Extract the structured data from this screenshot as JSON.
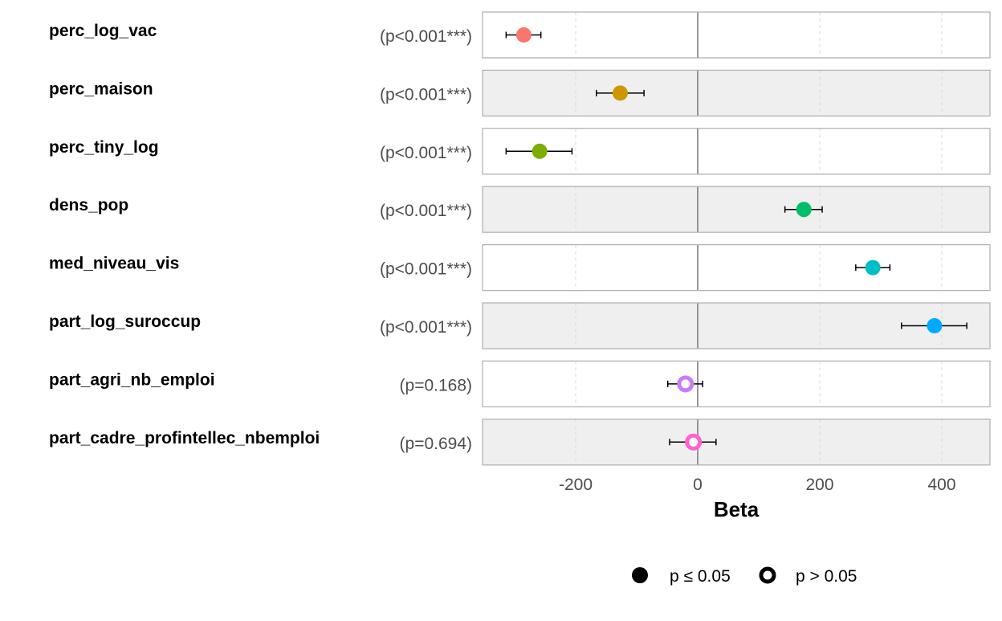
{
  "chart_data": {
    "type": "forest",
    "xlabel": "Beta",
    "xlim": [
      -352,
      480
    ],
    "xticks": [
      -200,
      0,
      200,
      400
    ],
    "xtick_labels": [
      "-200",
      "0",
      "200",
      "400"
    ],
    "reference_line": 0,
    "grid": "vertical dashed at ticks",
    "row_shading": "alternating white / light grey",
    "rows": [
      {
        "label": "perc_log_vac",
        "pvalue": "(p<0.001***)",
        "estimate": -285,
        "ci": [
          -314,
          -257
        ],
        "significant": true,
        "color": "#F8766D"
      },
      {
        "label": "perc_maison",
        "pvalue": "(p<0.001***)",
        "estimate": -127,
        "ci": [
          -166,
          -88
        ],
        "significant": true,
        "color": "#CD9600"
      },
      {
        "label": "perc_tiny_log",
        "pvalue": "(p<0.001***)",
        "estimate": -259,
        "ci": [
          -314,
          -206
        ],
        "significant": true,
        "color": "#7CAE00"
      },
      {
        "label": "dens_pop",
        "pvalue": "(p<0.001***)",
        "estimate": 174,
        "ci": [
          143,
          204
        ],
        "significant": true,
        "color": "#00BE67"
      },
      {
        "label": "med_niveau_vis",
        "pvalue": "(p<0.001***)",
        "estimate": 287,
        "ci": [
          259,
          315
        ],
        "significant": true,
        "color": "#00BFC4"
      },
      {
        "label": "part_log_suroccup",
        "pvalue": "(p<0.001***)",
        "estimate": 388,
        "ci": [
          334,
          441
        ],
        "significant": true,
        "color": "#00A9FF"
      },
      {
        "label": "part_agri_nb_emploi",
        "pvalue": "(p=0.168)",
        "estimate": -20,
        "ci": [
          -49,
          8
        ],
        "significant": false,
        "color": "#C77CFF"
      },
      {
        "label": "part_cadre_profintellec_nbemploi",
        "pvalue": "(p=0.694)",
        "estimate": -7,
        "ci": [
          -46,
          30
        ],
        "significant": false,
        "color": "#FF61CC"
      }
    ],
    "legend": {
      "position": "bottom",
      "items": [
        {
          "label": "p ≤ 0.05",
          "shape": "filled-circle"
        },
        {
          "label": "p > 0.05",
          "shape": "hollow-circle"
        }
      ]
    }
  }
}
